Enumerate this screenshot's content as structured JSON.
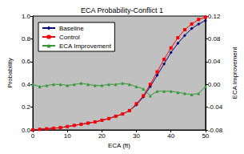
{
  "chart_data": {
    "type": "line",
    "title": "ECA Probability-Conflict 1",
    "x_label": "ECA (ft)",
    "y_label": "Probability",
    "y2_label": "ECA Improvement",
    "x": [
      0,
      2,
      4,
      6,
      8,
      10,
      12,
      14,
      16,
      18,
      20,
      22,
      24,
      26,
      28,
      30,
      32,
      34,
      36,
      38,
      40,
      42,
      44,
      46,
      48,
      50
    ],
    "series": [
      {
        "name": "Baseline",
        "color": "#000080",
        "marker": "diamond",
        "line_style": "solid",
        "values": [
          0.0,
          0.005,
          0.01,
          0.015,
          0.02,
          0.03,
          0.04,
          0.05,
          0.06,
          0.07,
          0.085,
          0.1,
          0.12,
          0.14,
          0.17,
          0.22,
          0.29,
          0.38,
          0.48,
          0.58,
          0.68,
          0.76,
          0.83,
          0.89,
          0.93,
          0.96
        ]
      },
      {
        "name": "Control",
        "color": "#ff0000",
        "marker": "square",
        "line_style": "solid",
        "values": [
          0.0,
          0.005,
          0.01,
          0.015,
          0.02,
          0.03,
          0.04,
          0.05,
          0.06,
          0.07,
          0.085,
          0.1,
          0.12,
          0.14,
          0.17,
          0.23,
          0.3,
          0.4,
          0.51,
          0.62,
          0.72,
          0.81,
          0.88,
          0.93,
          0.97,
          0.99
        ]
      },
      {
        "name": "ECA Improvement",
        "color": "#339933",
        "marker": "triangle",
        "line_style": "solid",
        "axis": "y2",
        "values": [
          0.0,
          -0.004,
          -0.002,
          0.0,
          0.0,
          -0.002,
          0.0,
          0.002,
          0.0,
          -0.002,
          -0.002,
          0.0,
          0.0,
          0.002,
          0.0,
          -0.004,
          -0.008,
          -0.02,
          -0.012,
          -0.012,
          -0.012,
          -0.014,
          -0.016,
          -0.018,
          -0.016,
          -0.004
        ]
      }
    ],
    "xlim": [
      0,
      50
    ],
    "xticks": [
      0,
      10,
      20,
      30,
      40,
      50
    ],
    "ylim": [
      0,
      1
    ],
    "yticks": [
      {
        "value": 0,
        "label": "0.0"
      },
      0.2,
      0.4,
      0.6,
      0.8,
      {
        "value": 1,
        "label": "1.0"
      }
    ],
    "y2lim": [
      -0.08,
      0.12
    ],
    "y2ticks": [
      -0.08,
      -0.04,
      {
        "value": 0,
        "label": "0.00"
      },
      0.04,
      0.08,
      0.12
    ],
    "grid": false,
    "legend": "upper left"
  }
}
